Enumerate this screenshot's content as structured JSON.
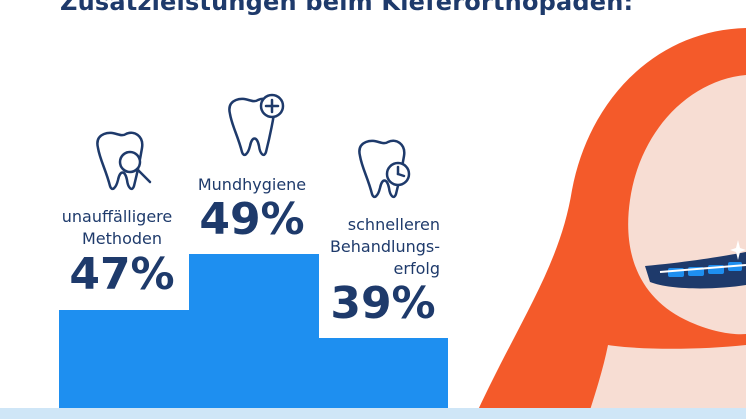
{
  "title": "Zusatzleistungen beim Kieferorthopäden:",
  "colors": {
    "bar": "#1e8ff0",
    "text": "#1e3a6b",
    "hair": "#f45a2a",
    "skin": "#f7ddd3",
    "strip": "#cfe6f7"
  },
  "chart_data": {
    "type": "bar",
    "title": "Zusatzleistungen beim Kieferorthopäden:",
    "categories": [
      {
        "lines": [
          "unauffälligere",
          "Methoden"
        ],
        "icon": "tooth-magnifier-icon"
      },
      {
        "lines": [
          "Mundhygiene"
        ],
        "icon": "tooth-plus-icon"
      },
      {
        "lines": [
          "schnelleren",
          "Behandlungs-",
          "erfolg"
        ],
        "icon": "tooth-clock-icon"
      }
    ],
    "values": [
      47,
      49,
      39
    ],
    "value_labels": [
      "47%",
      "49%",
      "39%"
    ],
    "unit": "%",
    "ylim": [
      0,
      50
    ],
    "grid": false,
    "legend": "none"
  }
}
